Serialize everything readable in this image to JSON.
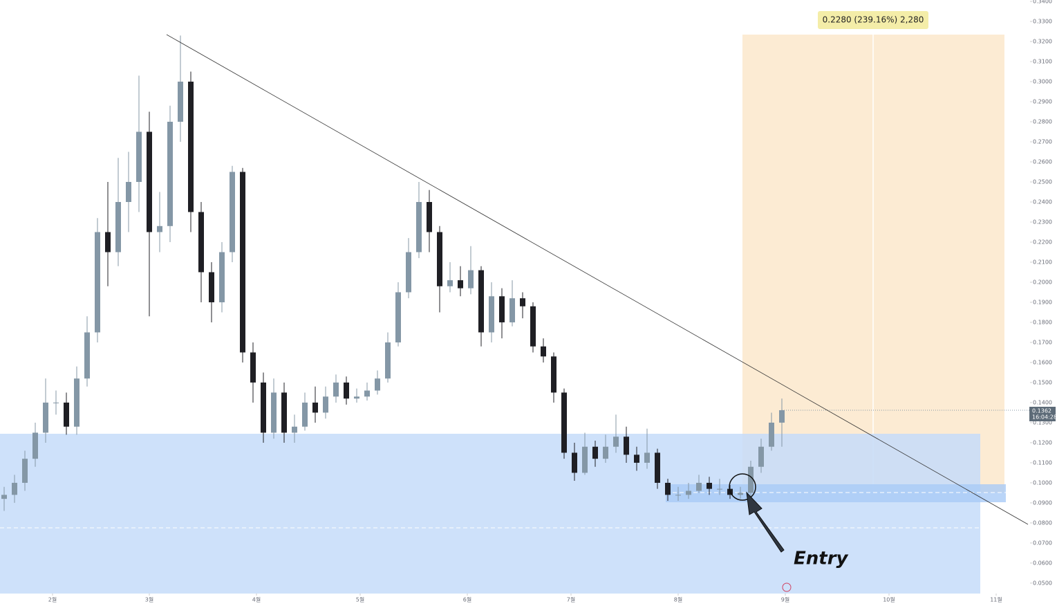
{
  "chart_data": {
    "type": "candlestick",
    "x": [
      -14,
      -11,
      -8,
      -5,
      -2,
      1,
      4,
      7,
      10,
      13,
      16,
      19,
      22,
      25,
      28,
      31,
      34,
      37,
      40,
      43,
      46,
      49,
      52,
      55,
      58,
      61,
      64,
      67,
      70,
      73,
      76,
      79,
      82,
      85,
      88,
      91,
      94,
      97,
      100,
      103,
      106,
      109,
      112,
      115,
      118,
      121,
      124,
      127,
      130,
      133,
      136,
      139,
      142,
      145,
      148,
      151,
      154,
      157,
      160,
      163,
      166,
      169,
      172,
      175,
      178,
      181,
      184,
      187,
      190,
      193,
      196,
      199,
      202,
      205,
      208,
      211
    ],
    "open": [
      0.092,
      0.094,
      0.1,
      0.112,
      0.125,
      0.14,
      0.14,
      0.128,
      0.152,
      0.175,
      0.225,
      0.215,
      0.24,
      0.25,
      0.275,
      0.225,
      0.228,
      0.28,
      0.3,
      0.235,
      0.205,
      0.19,
      0.215,
      0.255,
      0.165,
      0.15,
      0.125,
      0.145,
      0.125,
      0.128,
      0.14,
      0.135,
      0.143,
      0.15,
      0.142,
      0.143,
      0.146,
      0.152,
      0.17,
      0.195,
      0.215,
      0.24,
      0.225,
      0.198,
      0.201,
      0.197,
      0.206,
      0.175,
      0.193,
      0.18,
      0.192,
      0.188,
      0.168,
      0.163,
      0.145,
      0.115,
      0.105,
      0.118,
      0.112,
      0.118,
      0.123,
      0.114,
      0.11,
      0.115,
      0.1,
      0.094,
      0.094,
      0.096,
      0.1,
      0.097,
      0.097,
      0.094,
      0.095,
      0.108,
      0.118,
      0.13
    ],
    "high": [
      0.098,
      0.104,
      0.116,
      0.13,
      0.152,
      0.146,
      0.145,
      0.158,
      0.183,
      0.232,
      0.25,
      0.262,
      0.265,
      0.303,
      0.285,
      0.245,
      0.288,
      0.323,
      0.305,
      0.24,
      0.21,
      0.22,
      0.258,
      0.257,
      0.17,
      0.155,
      0.152,
      0.15,
      0.134,
      0.145,
      0.148,
      0.148,
      0.154,
      0.153,
      0.147,
      0.15,
      0.156,
      0.175,
      0.2,
      0.222,
      0.25,
      0.246,
      0.228,
      0.21,
      0.208,
      0.218,
      0.208,
      0.2,
      0.197,
      0.201,
      0.195,
      0.19,
      0.172,
      0.165,
      0.147,
      0.12,
      0.125,
      0.121,
      0.124,
      0.134,
      0.128,
      0.118,
      0.127,
      0.117,
      0.102,
      0.098,
      0.1,
      0.104,
      0.103,
      0.102,
      0.099,
      0.098,
      0.111,
      0.122,
      0.135,
      0.142
    ],
    "low": [
      0.086,
      0.09,
      0.096,
      0.108,
      0.12,
      0.134,
      0.124,
      0.124,
      0.148,
      0.17,
      0.198,
      0.208,
      0.225,
      0.235,
      0.183,
      0.215,
      0.22,
      0.27,
      0.225,
      0.19,
      0.18,
      0.185,
      0.21,
      0.16,
      0.14,
      0.12,
      0.122,
      0.12,
      0.12,
      0.126,
      0.13,
      0.132,
      0.14,
      0.139,
      0.14,
      0.141,
      0.144,
      0.15,
      0.168,
      0.192,
      0.212,
      0.215,
      0.185,
      0.195,
      0.193,
      0.194,
      0.168,
      0.17,
      0.172,
      0.178,
      0.182,
      0.165,
      0.16,
      0.14,
      0.112,
      0.101,
      0.104,
      0.108,
      0.11,
      0.115,
      0.11,
      0.106,
      0.107,
      0.097,
      0.091,
      0.091,
      0.092,
      0.095,
      0.094,
      0.094,
      0.092,
      0.092,
      0.093,
      0.105,
      0.116,
      0.118
    ],
    "close": [
      0.094,
      0.1,
      0.112,
      0.125,
      0.14,
      0.14,
      0.128,
      0.152,
      0.175,
      0.225,
      0.215,
      0.24,
      0.25,
      0.275,
      0.225,
      0.228,
      0.28,
      0.3,
      0.235,
      0.205,
      0.19,
      0.215,
      0.255,
      0.165,
      0.15,
      0.125,
      0.145,
      0.125,
      0.128,
      0.14,
      0.135,
      0.143,
      0.15,
      0.142,
      0.143,
      0.146,
      0.152,
      0.17,
      0.195,
      0.215,
      0.24,
      0.225,
      0.198,
      0.201,
      0.197,
      0.206,
      0.175,
      0.193,
      0.18,
      0.192,
      0.188,
      0.168,
      0.163,
      0.145,
      0.115,
      0.105,
      0.118,
      0.112,
      0.118,
      0.123,
      0.114,
      0.11,
      0.115,
      0.1,
      0.094,
      0.094,
      0.096,
      0.1,
      0.097,
      0.097,
      0.094,
      0.095,
      0.108,
      0.118,
      0.13,
      0.1362
    ],
    "up_color": "#8497a6",
    "down_color": "#1f1f24",
    "xlim": [
      -15.2,
      278.8
    ],
    "xticks": [
      {
        "value": 0,
        "label": "2월"
      },
      {
        "value": 28,
        "label": "3월"
      },
      {
        "value": 59,
        "label": "4월"
      },
      {
        "value": 89,
        "label": "5월"
      },
      {
        "value": 120,
        "label": "6월"
      },
      {
        "value": 150,
        "label": "7월"
      },
      {
        "value": 181,
        "label": "8월"
      },
      {
        "value": 212,
        "label": "9월"
      },
      {
        "value": 242,
        "label": "10월"
      },
      {
        "value": 273,
        "label": "11월"
      }
    ],
    "ylim": [
      0.0448,
      0.3407
    ],
    "yticks": [
      {
        "value": 0.05,
        "label": "0.0500"
      },
      {
        "value": 0.06,
        "label": "0.0600"
      },
      {
        "value": 0.07,
        "label": "0.0700"
      },
      {
        "value": 0.08,
        "label": "0.0800"
      },
      {
        "value": 0.09,
        "label": "0.0900"
      },
      {
        "value": 0.1,
        "label": "0.1000"
      },
      {
        "value": 0.11,
        "label": "0.1100"
      },
      {
        "value": 0.12,
        "label": "0.1200"
      },
      {
        "value": 0.13,
        "label": "0.1300"
      },
      {
        "value": 0.14,
        "label": "0.1400"
      },
      {
        "value": 0.15,
        "label": "0.1500"
      },
      {
        "value": 0.16,
        "label": "0.1600"
      },
      {
        "value": 0.17,
        "label": "0.1700"
      },
      {
        "value": 0.18,
        "label": "0.1800"
      },
      {
        "value": 0.19,
        "label": "0.1900"
      },
      {
        "value": 0.2,
        "label": "0.2000"
      },
      {
        "value": 0.21,
        "label": "0.2100"
      },
      {
        "value": 0.22,
        "label": "0.2200"
      },
      {
        "value": 0.23,
        "label": "0.2300"
      },
      {
        "value": 0.24,
        "label": "0.2400"
      },
      {
        "value": 0.25,
        "label": "0.2500"
      },
      {
        "value": 0.26,
        "label": "0.2600"
      },
      {
        "value": 0.27,
        "label": "0.2700"
      },
      {
        "value": 0.28,
        "label": "0.2800"
      },
      {
        "value": 0.29,
        "label": "0.2900"
      },
      {
        "value": 0.3,
        "label": "0.3000"
      },
      {
        "value": 0.31,
        "label": "0.3100"
      },
      {
        "value": 0.32,
        "label": "0.3200"
      },
      {
        "value": 0.33,
        "label": "0.3300"
      },
      {
        "value": 0.34,
        "label": "0.3400"
      }
    ],
    "last_price": {
      "value": 0.1362,
      "label": "0.1362"
    },
    "countdown": "16:04:28",
    "position_label": "0.2280 (239.16%) 2,280",
    "entry_label": "Entry"
  }
}
